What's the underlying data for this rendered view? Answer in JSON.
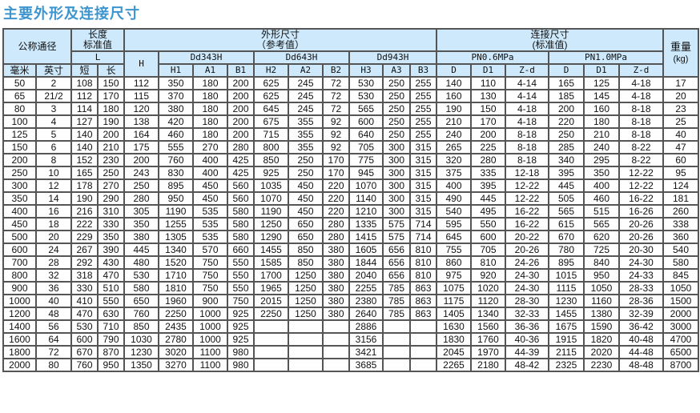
{
  "title": "主要外形及连接尺寸",
  "header": {
    "nominal": "公称通径",
    "length_l1": "长度",
    "length_l2": "标准值",
    "outline_l1": "外形尺寸",
    "outline_l2": "（参考值）",
    "connect_l1": "连接尺寸",
    "connect_l2": "(标准值)",
    "weight_l1": "重量",
    "weight_l2": "(kg)",
    "L": "L",
    "H": "H",
    "dd343": "Dd343H",
    "dd643": "Dd643H",
    "dd943": "Dd943H",
    "pn06": "PN0.6MPa",
    "pn10": "PN1.0MPa",
    "sub": [
      "毫米",
      "英寸",
      "短",
      "长",
      "H1",
      "A1",
      "B1",
      "H2",
      "A2",
      "B2",
      "H3",
      "A3",
      "B3",
      "D",
      "D1",
      "Z-d",
      "D",
      "D1",
      "Z-d"
    ]
  },
  "rows": [
    [
      "50",
      "2",
      "108",
      "150",
      "112",
      "350",
      "180",
      "200",
      "625",
      "245",
      "72",
      "530",
      "250",
      "255",
      "140",
      "110",
      "4-14",
      "165",
      "125",
      "4-18",
      "17"
    ],
    [
      "65",
      "21/2",
      "112",
      "170",
      "115",
      "370",
      "180",
      "200",
      "625",
      "245",
      "72",
      "530",
      "250",
      "255",
      "160",
      "130",
      "4-14",
      "185",
      "145",
      "4-18",
      "20"
    ],
    [
      "80",
      "3",
      "114",
      "180",
      "120",
      "380",
      "180",
      "200",
      "645",
      "245",
      "72",
      "565",
      "250",
      "255",
      "190",
      "150",
      "4-18",
      "200",
      "160",
      "8-18",
      "23"
    ],
    [
      "100",
      "4",
      "127",
      "190",
      "138",
      "420",
      "180",
      "200",
      "675",
      "355",
      "92",
      "600",
      "250",
      "255",
      "210",
      "170",
      "4-18",
      "220",
      "180",
      "8-18",
      "25"
    ],
    [
      "125",
      "5",
      "140",
      "200",
      "164",
      "460",
      "180",
      "200",
      "715",
      "355",
      "92",
      "640",
      "250",
      "255",
      "240",
      "200",
      "8-18",
      "250",
      "210",
      "8-18",
      "40"
    ],
    [
      "150",
      "6",
      "140",
      "210",
      "175",
      "555",
      "270",
      "280",
      "800",
      "355",
      "92",
      "705",
      "300",
      "315",
      "265",
      "225",
      "8-18",
      "285",
      "240",
      "8-22",
      "47"
    ],
    [
      "200",
      "8",
      "152",
      "230",
      "200",
      "760",
      "400",
      "425",
      "850",
      "250",
      "170",
      "775",
      "300",
      "315",
      "320",
      "280",
      "8-18",
      "340",
      "295",
      "8-22",
      "60"
    ],
    [
      "250",
      "10",
      "165",
      "250",
      "243",
      "830",
      "400",
      "425",
      "925",
      "250",
      "170",
      "945",
      "300",
      "315",
      "375",
      "335",
      "12-18",
      "395",
      "350",
      "12-22",
      "95"
    ],
    [
      "300",
      "12",
      "178",
      "270",
      "250",
      "895",
      "450",
      "560",
      "1035",
      "450",
      "220",
      "1070",
      "300",
      "315",
      "400",
      "395",
      "12-22",
      "445",
      "400",
      "12-22",
      "124"
    ],
    [
      "350",
      "14",
      "190",
      "290",
      "280",
      "950",
      "450",
      "560",
      "1070",
      "450",
      "220",
      "1140",
      "300",
      "315",
      "490",
      "445",
      "12-22",
      "505",
      "460",
      "16-22",
      "181"
    ],
    [
      "400",
      "16",
      "216",
      "310",
      "305",
      "1190",
      "535",
      "580",
      "1190",
      "450",
      "220",
      "1210",
      "300",
      "315",
      "540",
      "495",
      "16-22",
      "565",
      "515",
      "16-26",
      "260"
    ],
    [
      "450",
      "18",
      "222",
      "330",
      "350",
      "1255",
      "535",
      "580",
      "1250",
      "650",
      "280",
      "1335",
      "575",
      "714",
      "595",
      "550",
      "16-22",
      "615",
      "565",
      "20-26",
      "338"
    ],
    [
      "500",
      "20",
      "229",
      "350",
      "380",
      "1305",
      "535",
      "580",
      "1290",
      "650",
      "280",
      "1415",
      "575",
      "714",
      "645",
      "600",
      "20-22",
      "670",
      "620",
      "20-26",
      "360"
    ],
    [
      "600",
      "24",
      "267",
      "390",
      "445",
      "1340",
      "570",
      "660",
      "1455",
      "850",
      "380",
      "1605",
      "656",
      "810",
      "755",
      "705",
      "20-26",
      "780",
      "725",
      "20-30",
      "540"
    ],
    [
      "700",
      "28",
      "292",
      "430",
      "480",
      "1520",
      "750",
      "550",
      "1585",
      "850",
      "380",
      "1844",
      "656",
      "810",
      "860",
      "810",
      "24-26",
      "895",
      "840",
      "24-30",
      "580"
    ],
    [
      "800",
      "32",
      "318",
      "470",
      "530",
      "1710",
      "750",
      "550",
      "1700",
      "1250",
      "380",
      "2040",
      "656",
      "810",
      "975",
      "920",
      "24-30",
      "1015",
      "950",
      "24-33",
      "845"
    ],
    [
      "900",
      "36",
      "330",
      "510",
      "580",
      "1810",
      "750",
      "550",
      "1965",
      "1250",
      "380",
      "2255",
      "785",
      "863",
      "1075",
      "1020",
      "24-30",
      "1115",
      "1050",
      "28-33",
      "1050"
    ],
    [
      "1000",
      "40",
      "410",
      "550",
      "650",
      "1960",
      "900",
      "750",
      "2015",
      "1250",
      "380",
      "2380",
      "785",
      "863",
      "1175",
      "1120",
      "28-30",
      "1230",
      "1160",
      "28-36",
      "1500"
    ],
    [
      "1200",
      "48",
      "470",
      "630",
      "760",
      "2250",
      "1000",
      "925",
      "2250",
      "1250",
      "380",
      "2640",
      "785",
      "863",
      "1405",
      "1340",
      "32-33",
      "1455",
      "1380",
      "32-39",
      "2000"
    ],
    [
      "1400",
      "56",
      "530",
      "710",
      "850",
      "2435",
      "1000",
      "925",
      "",
      "",
      "",
      "2886",
      "",
      "",
      "1630",
      "1560",
      "36-36",
      "1675",
      "1590",
      "36-42",
      "3000"
    ],
    [
      "1600",
      "64",
      "600",
      "790",
      "1030",
      "2780",
      "1000",
      "925",
      "",
      "",
      "",
      "3156",
      "",
      "",
      "1830",
      "1760",
      "40-36",
      "1915",
      "1820",
      "40-48",
      "4700"
    ],
    [
      "1800",
      "72",
      "670",
      "870",
      "1230",
      "3020",
      "1100",
      "980",
      "",
      "",
      "",
      "3421",
      "",
      "",
      "2045",
      "1970",
      "44-39",
      "2115",
      "2020",
      "44-48",
      "6500"
    ],
    [
      "2000",
      "80",
      "760",
      "950",
      "1350",
      "3270",
      "1100",
      "980",
      "",
      "",
      "",
      "3685",
      "",
      "",
      "2265",
      "2180",
      "48-42",
      "2325",
      "2230",
      "48-48",
      "8700"
    ]
  ]
}
